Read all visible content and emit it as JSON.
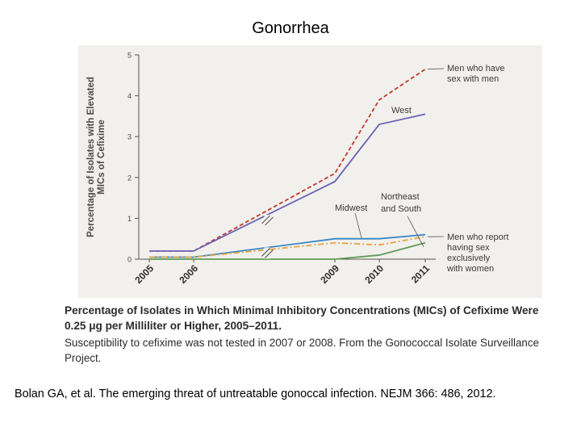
{
  "slide": {
    "title": "Gonorrhea",
    "citation": "Bolan GA, et al. The emerging threat of untreatable gonoccal infection. NEJM 366: 486, 2012."
  },
  "figure": {
    "caption_title": "Percentage of Isolates in Which Minimal Inhibitory Concentrations (MICs) of Cefixime Were 0.25 μg per Milliliter or Higher, 2005–2011.",
    "caption_note": "Susceptibility to cefixime was not tested in 2007 or 2008. From the Gonococcal Isolate Surveillance Project."
  },
  "chart_data": {
    "type": "line",
    "ylabel_lines": [
      "Percentage of Isolates with Elevated",
      "MICs of Cefixime"
    ],
    "xlabel": "",
    "x": [
      "2005",
      "2006",
      "2009",
      "2010",
      "2011"
    ],
    "ylim": [
      0,
      5
    ],
    "yticks": [
      "0",
      "1",
      "2",
      "3",
      "4",
      "5"
    ],
    "grid": false,
    "axis_break": "between 2006 and 2009",
    "series": [
      {
        "name": "Men who have sex with men",
        "values": [
          0.2,
          0.2,
          2.1,
          3.9,
          4.65
        ],
        "color": "#c0392b",
        "dash": "dashed"
      },
      {
        "name": "West",
        "values": [
          0.2,
          0.2,
          1.9,
          3.3,
          3.55
        ],
        "color": "#6a63b5",
        "dash": "solid"
      },
      {
        "name": "Midwest",
        "values": [
          0.05,
          0.05,
          0.5,
          0.5,
          0.6
        ],
        "color": "#3b86c4",
        "dash": "solid"
      },
      {
        "name": "Men who report having sex exclusively with women",
        "values": [
          0.05,
          0.05,
          0.4,
          0.35,
          0.55
        ],
        "color": "#e8a33a",
        "dash": "dashdot"
      },
      {
        "name": "Northeast and South",
        "values": [
          0.0,
          0.0,
          0.0,
          0.1,
          0.4
        ],
        "color": "#5e9b56",
        "dash": "solid"
      }
    ],
    "annotations": {
      "msm_lines": [
        "Men who have",
        "sex with men"
      ],
      "west": "West",
      "nes_lines": [
        "Northeast",
        "and South"
      ],
      "midwest": "Midwest",
      "msw_lines": [
        "Men who report",
        "having sex",
        "exclusively",
        "with women"
      ]
    }
  }
}
